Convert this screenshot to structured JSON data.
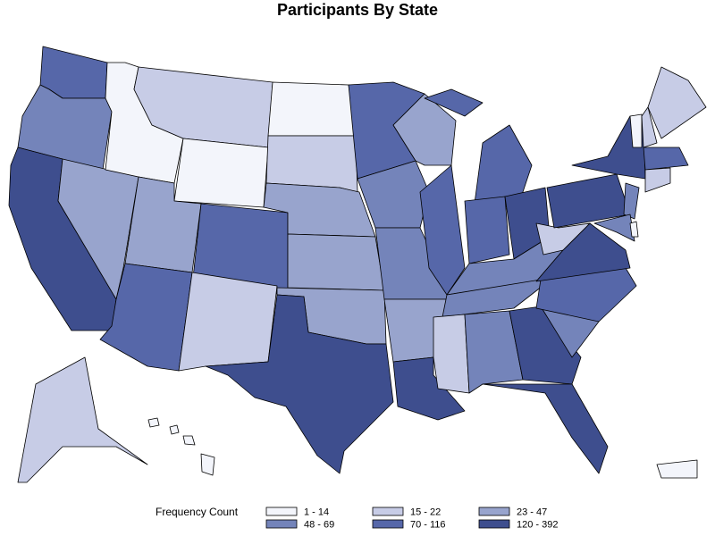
{
  "title": "Participants By State",
  "legend": {
    "title": "Frequency Count",
    "items": [
      {
        "label": "1 - 14",
        "color": "#f3f5fb"
      },
      {
        "label": "15 - 22",
        "color": "#c7cce6"
      },
      {
        "label": "23 - 47",
        "color": "#98a4cd"
      },
      {
        "label": "48 - 69",
        "color": "#7484ba"
      },
      {
        "label": "70 - 116",
        "color": "#5667a9"
      },
      {
        "label": "120 - 392",
        "color": "#3e4e8e"
      }
    ]
  }
}
